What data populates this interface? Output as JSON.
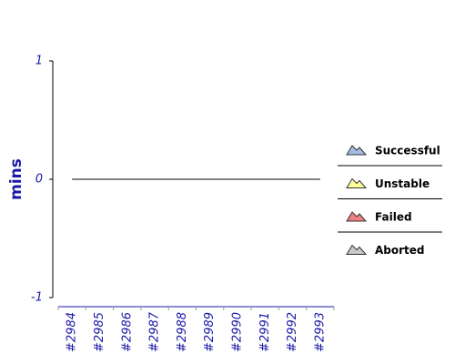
{
  "chart_data": {
    "type": "area",
    "stacked": true,
    "ylabel": "mins",
    "categories": [
      "#2984",
      "#2985",
      "#2986",
      "#2987",
      "#2988",
      "#2989",
      "#2990",
      "#2991",
      "#2992",
      "#2993"
    ],
    "series": [
      {
        "name": "Successful",
        "color": "#a4bde0",
        "values": [
          0,
          0,
          0,
          0,
          0,
          0,
          0,
          0,
          0,
          0
        ]
      },
      {
        "name": "Unstable",
        "color": "#ffff99",
        "values": [
          0,
          0,
          0,
          0,
          0,
          0,
          0,
          0,
          0,
          0
        ]
      },
      {
        "name": "Failed",
        "color": "#f08080",
        "values": [
          0,
          0,
          0,
          0,
          0,
          0,
          0,
          0,
          0,
          0
        ]
      },
      {
        "name": "Aborted",
        "color": "#c8c8c8",
        "values": [
          0,
          0,
          0,
          0,
          0,
          0,
          0,
          0,
          0,
          0
        ]
      }
    ],
    "ylim": [
      -1,
      1
    ],
    "yticks": [
      -1,
      0,
      1
    ],
    "legend": "right"
  }
}
